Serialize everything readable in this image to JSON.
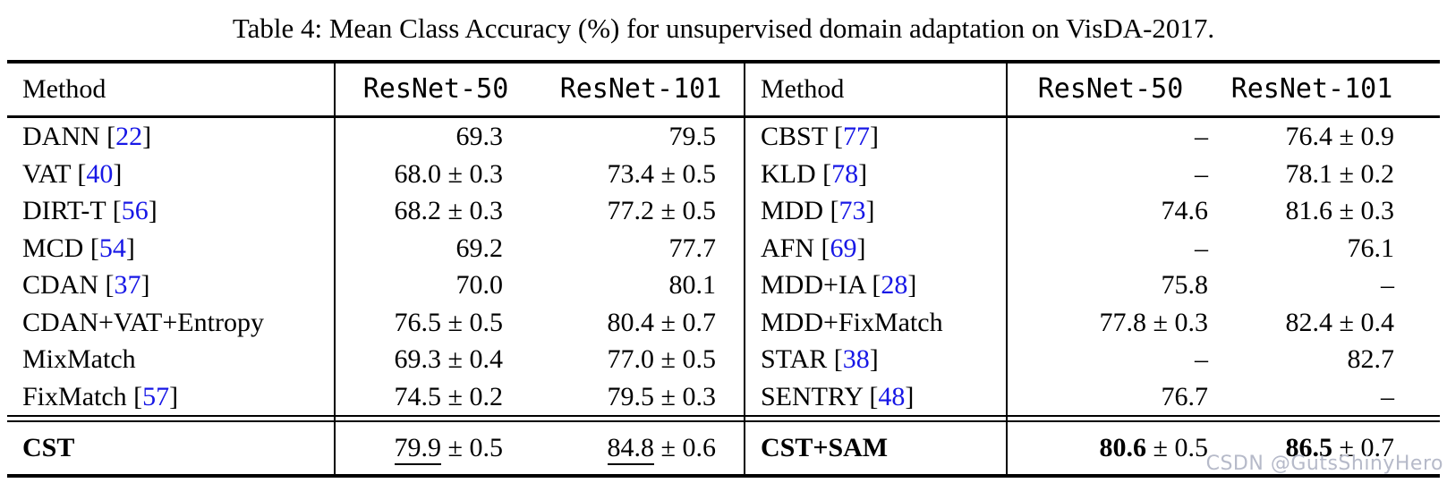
{
  "title": "Table 4: Mean Class Accuracy (%) for unsupervised domain adaptation on VisDA-2017.",
  "colors": {
    "citation_blue": "#1717e6",
    "watermark_gray": "#b6bac9",
    "background": "#ffffff"
  },
  "header": {
    "method": "Method",
    "resnet50": "ResNet-50",
    "resnet101": "ResNet-101"
  },
  "left": {
    "rows": [
      {
        "method": "DANN",
        "ref": "22",
        "r50": "69.3",
        "r101": "79.5"
      },
      {
        "method": "VAT",
        "ref": "40",
        "r50": "68.0 ± 0.3",
        "r101": "73.4 ± 0.5"
      },
      {
        "method": "DIRT-T",
        "ref": "56",
        "r50": "68.2 ± 0.3",
        "r101": "77.2 ± 0.5"
      },
      {
        "method": "MCD",
        "ref": "54",
        "r50": "69.2",
        "r101": "77.7"
      },
      {
        "method": "CDAN",
        "ref": "37",
        "r50": "70.0",
        "r101": "80.1"
      },
      {
        "method": "CDAN+VAT+Entropy",
        "ref": null,
        "r50": "76.5 ± 0.5",
        "r101": "80.4 ± 0.7"
      },
      {
        "method": "MixMatch",
        "ref": null,
        "r50": "69.3 ± 0.4",
        "r101": "77.0 ± 0.5"
      },
      {
        "method": "FixMatch",
        "ref": "57",
        "r50": "74.5 ± 0.2",
        "r101": "79.5 ± 0.3"
      }
    ],
    "footer": {
      "method": "CST",
      "r50_value": "79.9",
      "r50_err": "± 0.5",
      "r101_value": "84.8",
      "r101_err": "± 0.6",
      "emphasis": "u"
    }
  },
  "right": {
    "rows": [
      {
        "method": "CBST",
        "ref": "77",
        "r50": "–",
        "r101": "76.4 ± 0.9"
      },
      {
        "method": "KLD",
        "ref": "78",
        "r50": "–",
        "r101": "78.1 ± 0.2"
      },
      {
        "method": "MDD",
        "ref": "73",
        "r50": "74.6",
        "r101": "81.6 ± 0.3"
      },
      {
        "method": "AFN",
        "ref": "69",
        "r50": "–",
        "r101": "76.1"
      },
      {
        "method": "MDD+IA",
        "ref": "28",
        "r50": "75.8",
        "r101": "–"
      },
      {
        "method": "MDD+FixMatch",
        "ref": null,
        "r50": "77.8 ± 0.3",
        "r101": "82.4 ± 0.4"
      },
      {
        "method": "STAR",
        "ref": "38",
        "r50": "–",
        "r101": "82.7"
      },
      {
        "method": "SENTRY",
        "ref": "48",
        "r50": "76.7",
        "r101": "–"
      }
    ],
    "footer": {
      "method": "CST+SAM",
      "r50_value": "80.6",
      "r50_err": "± 0.5",
      "r101_value": "86.5",
      "r101_err": "± 0.7",
      "emphasis": "b"
    }
  },
  "watermark": {
    "prefix": "CSDN",
    "handle": "@GutsShinyHero"
  }
}
